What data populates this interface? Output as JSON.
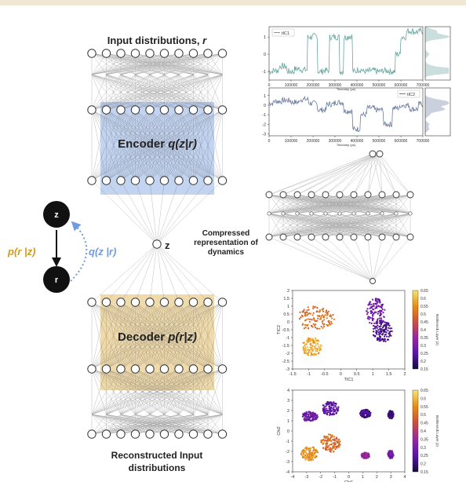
{
  "network": {
    "input_title": "Input distributions, ",
    "input_var": "r",
    "encoder_label": "Encoder ",
    "encoder_math": "q(z|r)",
    "decoder_label": "Decoder ",
    "decoder_math": "p(r|z)",
    "latent_label": "z",
    "output_title_line1": "Reconstructed Input",
    "output_title_line2": "distributions",
    "compressed_line1": "Compressed",
    "compressed_line2": "representation of",
    "compressed_line3": "dynamics"
  },
  "graphical_model": {
    "node_top": "z",
    "node_bottom": "r",
    "generative_label": "p(r |z)",
    "inference_label": "q(z |r)",
    "generative_color": "#d39a1e",
    "inference_color": "#6f9be0"
  },
  "colors": {
    "encoder_fill": "#b8cdef",
    "decoder_fill": "#ecd49d",
    "tic1_line": "#6aa6a0",
    "tic2_line": "#6a7aa0"
  },
  "chart_data": [
    {
      "type": "line",
      "legend": [
        "tIC1"
      ],
      "xlabel": "Timestep (ps)",
      "ylabel": "",
      "xticks": [
        "0",
        "100000",
        "200000",
        "300000",
        "400000",
        "500000",
        "600000",
        "700000"
      ],
      "yticks": [
        "1",
        "0",
        "-1"
      ],
      "ylim": [
        -1.5,
        1.6
      ],
      "x": [
        0,
        30000,
        60000,
        100000,
        130000,
        160000,
        190000,
        210000,
        230000,
        260000,
        290000,
        310000,
        330000,
        350000,
        370000,
        390000,
        410000,
        440000,
        470000,
        500000,
        530000,
        560000,
        590000,
        610000,
        640000,
        670000,
        700000
      ],
      "y": [
        -1.0,
        -0.95,
        -0.7,
        -1.0,
        -0.85,
        -0.9,
        1.0,
        1.05,
        -1.0,
        -0.95,
        1.0,
        1.0,
        -1.0,
        1.0,
        1.05,
        -1.0,
        -0.9,
        -1.0,
        -0.95,
        -1.0,
        -0.95,
        -1.0,
        0.0,
        1.0,
        1.35,
        1.3,
        1.35
      ]
    },
    {
      "type": "line",
      "legend": [
        "tIC2"
      ],
      "xlabel": "Timestep (ps)",
      "ylabel": "",
      "xticks": [
        "0",
        "100000",
        "200000",
        "300000",
        "400000",
        "500000",
        "600000",
        "700000"
      ],
      "yticks": [
        "1",
        "0",
        "-1",
        "-2",
        "-3"
      ],
      "ylim": [
        -3.2,
        1.8
      ],
      "x": [
        0,
        40000,
        80000,
        120000,
        160000,
        200000,
        240000,
        280000,
        320000,
        360000,
        400000,
        430000,
        460000,
        500000,
        540000,
        580000,
        620000,
        660000,
        700000
      ],
      "y": [
        0.2,
        0.4,
        0.5,
        0.3,
        0.6,
        0.2,
        -0.5,
        0.1,
        0.3,
        -0.6,
        -2.5,
        -1.0,
        -0.3,
        -0.5,
        -2.0,
        -0.3,
        0.0,
        -0.4,
        0.1
      ]
    },
    {
      "type": "scatter",
      "xlabel": "TIC1",
      "ylabel": "TIC2",
      "xticks": [
        "-1.5",
        "-1",
        "-0.5",
        "0",
        "0.5",
        "1",
        "1.5",
        "2"
      ],
      "yticks": [
        "2",
        "1.5",
        "1",
        "0.5",
        "0",
        "-0.5",
        "-1",
        "-1.5",
        "-2",
        "-2.5",
        "-3"
      ],
      "xlim": [
        -1.5,
        2
      ],
      "ylim": [
        -3,
        2
      ],
      "colorbar_label": "Bottleneck Layer (z)",
      "colorbar_ticks": [
        "0.65",
        "0.6",
        "0.55",
        "0.5",
        "0.45",
        "0.4",
        "0.35",
        "0.3",
        "0.25",
        "0.2",
        "0.15"
      ],
      "clusters": [
        {
          "x": -0.8,
          "y": 0.2,
          "w": 0.6,
          "h": 0.8,
          "z": 0.5
        },
        {
          "x": -0.9,
          "y": -1.6,
          "w": 0.3,
          "h": 0.6,
          "z": 0.58
        },
        {
          "x": 1.1,
          "y": 0.6,
          "w": 0.3,
          "h": 0.9,
          "z": 0.28
        },
        {
          "x": 1.3,
          "y": -0.6,
          "w": 0.3,
          "h": 0.7,
          "z": 0.22
        }
      ]
    },
    {
      "type": "scatter",
      "xlabel": "Chi1",
      "ylabel": "Chi2",
      "xticks": [
        "-4",
        "-3",
        "-2",
        "-1",
        "0",
        "1",
        "2",
        "3",
        "4"
      ],
      "yticks": [
        "4",
        "3",
        "2",
        "1",
        "0",
        "-1",
        "-2",
        "-3",
        "-4"
      ],
      "xlim": [
        -4,
        4
      ],
      "ylim": [
        -4,
        4
      ],
      "colorbar_label": "Bottleneck Layer (z)",
      "colorbar_ticks": [
        "0.65",
        "0.6",
        "0.55",
        "0.5",
        "0.45",
        "0.4",
        "0.35",
        "0.3",
        "0.25",
        "0.2",
        "0.15"
      ],
      "clusters": [
        {
          "x": -2.8,
          "y": 1.4,
          "w": 0.6,
          "h": 0.5,
          "z": 0.28
        },
        {
          "x": -1.3,
          "y": 2.2,
          "w": 0.6,
          "h": 0.7,
          "z": 0.25
        },
        {
          "x": 1.2,
          "y": 1.7,
          "w": 0.4,
          "h": 0.4,
          "z": 0.22
        },
        {
          "x": 3.0,
          "y": 1.6,
          "w": 0.2,
          "h": 0.4,
          "z": 0.2
        },
        {
          "x": -2.8,
          "y": -2.2,
          "w": 0.6,
          "h": 0.7,
          "z": 0.55
        },
        {
          "x": -1.3,
          "y": -1.2,
          "w": 0.7,
          "h": 0.9,
          "z": 0.5
        },
        {
          "x": 1.2,
          "y": -2.4,
          "w": 0.3,
          "h": 0.3,
          "z": 0.35
        },
        {
          "x": 3.0,
          "y": -2.3,
          "w": 0.2,
          "h": 0.4,
          "z": 0.3
        }
      ]
    }
  ]
}
